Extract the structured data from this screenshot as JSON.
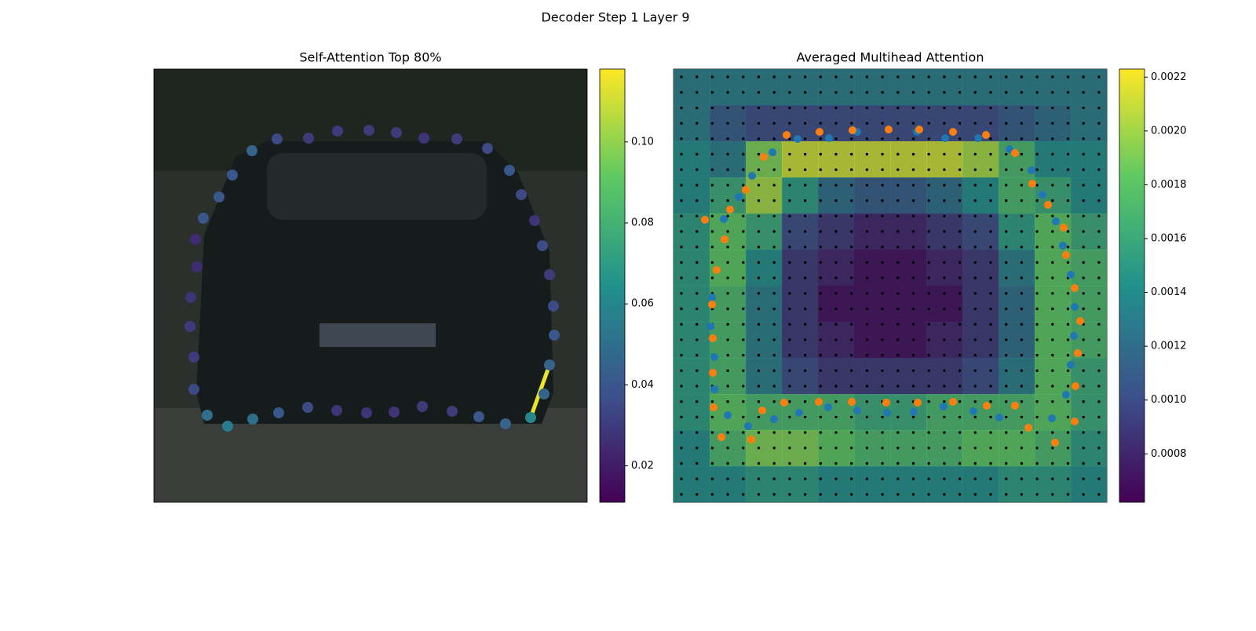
{
  "title": "Decoder Step 1 Layer 9",
  "chart_data": [
    {
      "type": "scatter",
      "title": "Self-Attention Top 80%",
      "xlim": [
        0,
        552
      ],
      "ylim": [
        552,
        0
      ],
      "x": [
        125,
        157,
        197,
        234,
        274,
        309,
        344,
        386,
        425,
        453,
        468,
        485,
        495,
        504,
        509,
        510,
        504,
        497,
        480,
        448,
        414,
        380,
        342,
        306,
        271,
        233,
        196,
        159,
        126,
        94,
        68,
        51,
        51,
        46,
        47,
        55,
        53,
        63,
        83,
        100
      ],
      "y": [
        104,
        89,
        88,
        79,
        78,
        81,
        88,
        89,
        101,
        129,
        160,
        193,
        225,
        262,
        302,
        339,
        377,
        414,
        444,
        452,
        443,
        436,
        430,
        437,
        438,
        435,
        431,
        438,
        446,
        455,
        441,
        408,
        367,
        328,
        291,
        252,
        217,
        190,
        163,
        135
      ],
      "values": [
        0.045,
        0.035,
        0.03,
        0.03,
        0.03,
        0.03,
        0.028,
        0.03,
        0.035,
        0.04,
        0.035,
        0.028,
        0.035,
        0.03,
        0.035,
        0.04,
        0.045,
        0.045,
        0.06,
        0.045,
        0.04,
        0.03,
        0.03,
        0.028,
        0.028,
        0.028,
        0.035,
        0.04,
        0.05,
        0.055,
        0.05,
        0.035,
        0.03,
        0.03,
        0.028,
        0.025,
        0.025,
        0.04,
        0.04,
        0.04
      ],
      "edges": [
        {
          "from": 18,
          "to": 16,
          "value": 0.115
        }
      ],
      "colorbar": {
        "colormap": "viridis",
        "clim": [
          0.011,
          0.118
        ],
        "ticks": [
          0.02,
          0.04,
          0.06,
          0.08,
          {
            "value": 0.1,
            "label": "0.10"
          }
        ]
      }
    },
    {
      "type": "heatmap",
      "title": "Averaged Multihead Attention",
      "xlim": [
        0,
        552
      ],
      "ylim": [
        552,
        0
      ],
      "matrix": [
        [
          0.0013,
          0.0013,
          0.0013,
          0.0013,
          0.0013,
          0.0013,
          0.0013,
          0.0013,
          0.0013,
          0.0013,
          0.0013,
          0.0013
        ],
        [
          0.0013,
          0.0011,
          0.001,
          0.001,
          0.001,
          0.001,
          0.001,
          0.001,
          0.001,
          0.0011,
          0.0012,
          0.0013
        ],
        [
          0.0014,
          0.0013,
          0.0019,
          0.0021,
          0.0021,
          0.0021,
          0.0021,
          0.0021,
          0.002,
          0.0017,
          0.0014,
          0.0014
        ],
        [
          0.0014,
          0.0016,
          0.002,
          0.0015,
          0.0012,
          0.0011,
          0.0011,
          0.0012,
          0.0014,
          0.0017,
          0.0016,
          0.0014
        ],
        [
          0.0015,
          0.0018,
          0.0016,
          0.001,
          0.0009,
          0.0008,
          0.0008,
          0.0009,
          0.001,
          0.0015,
          0.0018,
          0.0016
        ],
        [
          0.0015,
          0.0018,
          0.0014,
          0.0009,
          0.0008,
          0.0007,
          0.0007,
          0.0008,
          0.0009,
          0.0013,
          0.0018,
          0.0017
        ],
        [
          0.0015,
          0.0017,
          0.0013,
          0.0009,
          0.0007,
          0.0007,
          0.0007,
          0.0007,
          0.0009,
          0.0012,
          0.0018,
          0.0017
        ],
        [
          0.0015,
          0.0017,
          0.0013,
          0.0009,
          0.0008,
          0.0007,
          0.0007,
          0.0008,
          0.0009,
          0.0012,
          0.0018,
          0.0017
        ],
        [
          0.0015,
          0.0017,
          0.0013,
          0.001,
          0.0009,
          0.0009,
          0.0009,
          0.0009,
          0.001,
          0.0013,
          0.0018,
          0.0016
        ],
        [
          0.0015,
          0.0018,
          0.0017,
          0.0017,
          0.0017,
          0.0016,
          0.0016,
          0.0017,
          0.0017,
          0.0017,
          0.0018,
          0.0016
        ],
        [
          0.0014,
          0.0017,
          0.0019,
          0.0019,
          0.0018,
          0.0017,
          0.0017,
          0.0017,
          0.0018,
          0.0018,
          0.0017,
          0.0015
        ],
        [
          0.0014,
          0.0014,
          0.0015,
          0.0015,
          0.0014,
          0.0014,
          0.0014,
          0.0014,
          0.0014,
          0.0015,
          0.0015,
          0.0014
        ]
      ],
      "series": [
        {
          "color": "#1f77b4",
          "x": [
            100,
            126,
            158,
            198,
            234,
            310,
            346,
            388,
            428,
            456,
            470,
            487,
            496,
            506,
            511,
            510,
            506,
            500,
            482,
            415,
            382,
            344,
            306,
            272,
            234,
            197,
            160,
            128,
            95,
            69,
            52,
            52,
            47,
            49,
            64,
            83
          ],
          "y": [
            136,
            106,
            89,
            88,
            80,
            80,
            88,
            88,
            102,
            129,
            160,
            194,
            225,
            262,
            303,
            340,
            377,
            415,
            445,
            444,
            436,
            430,
            437,
            438,
            435,
            431,
            438,
            446,
            455,
            441,
            408,
            367,
            328,
            291,
            191,
            163
          ]
        },
        {
          "color": "#ff7f0e",
          "x": [
            40,
            55,
            49,
            50,
            50,
            51,
            61,
            99,
            113,
            141,
            185,
            227,
            271,
            311,
            356,
            399,
            435,
            452,
            486,
            511,
            512,
            515,
            518,
            511,
            500,
            497,
            477,
            457,
            435,
            398,
            356,
            313,
            274,
            228,
            186,
            144,
            115,
            92,
            72,
            65
          ],
          "y": [
            192,
            256,
            300,
            343,
            387,
            431,
            469,
            472,
            435,
            425,
            424,
            424,
            425,
            425,
            424,
            429,
            429,
            457,
            476,
            449,
            404,
            362,
            321,
            279,
            237,
            202,
            173,
            146,
            107,
            84,
            80,
            77,
            77,
            78,
            80,
            84,
            112,
            154,
            179,
            217
          ]
        }
      ],
      "colorbar": {
        "colormap": "viridis",
        "clim": [
          0.00062,
          0.00223
        ],
        "ticks": [
          0.0008,
          {
            "value": 0.001,
            "label": "0.0010"
          },
          0.0012,
          0.0014,
          0.0016,
          0.0018,
          {
            "value": 0.002,
            "label": "0.0020"
          },
          0.0022
        ]
      }
    }
  ]
}
